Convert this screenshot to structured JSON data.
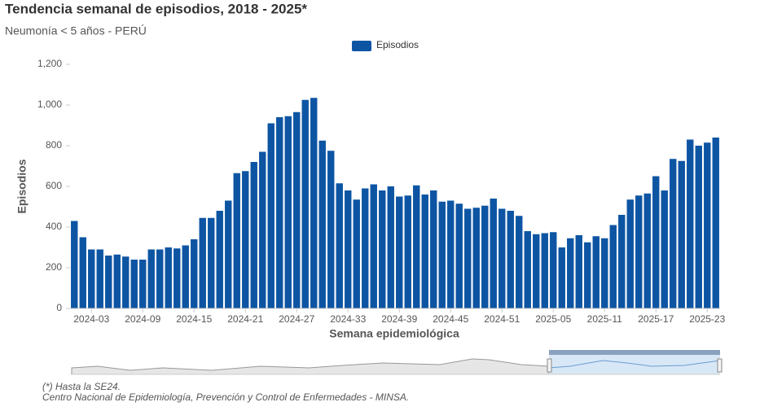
{
  "chart_data": {
    "type": "bar",
    "title": "Tendencia semanal de episodios, 2018 - 2025*",
    "subtitle": "Neumonía < 5 años - PERÚ",
    "y_axis_label": "Episodios",
    "x_axis_label": "Semana epidemiológica",
    "footnotes": [
      "(*) Hasta la SE24.",
      "Centro Nacional de Epidemiología, Prevención y Control de Enfermedades - MINSA."
    ],
    "categories": [
      null,
      null,
      "2024-03",
      null,
      null,
      null,
      null,
      null,
      "2024-09",
      null,
      null,
      null,
      null,
      null,
      "2024-15",
      null,
      null,
      null,
      null,
      null,
      "2024-21",
      null,
      null,
      null,
      null,
      null,
      "2024-27",
      null,
      null,
      null,
      null,
      null,
      "2024-33",
      null,
      null,
      null,
      null,
      null,
      "2024-39",
      null,
      null,
      null,
      null,
      null,
      "2024-45",
      null,
      null,
      null,
      null,
      null,
      "2024-51",
      null,
      null,
      null,
      null,
      null,
      "2025-05",
      null,
      null,
      null,
      null,
      null,
      "2025-11",
      null,
      null,
      null,
      null,
      null,
      "2025-17",
      null,
      null,
      null,
      null,
      null,
      "2025-23",
      null
    ],
    "series": [
      {
        "name": "Episodios",
        "color": "#0d55a3",
        "values": [
          430,
          350,
          290,
          290,
          260,
          265,
          255,
          240,
          240,
          290,
          290,
          300,
          295,
          310,
          340,
          445,
          445,
          480,
          530,
          665,
          675,
          720,
          770,
          910,
          940,
          945,
          965,
          1025,
          1035,
          825,
          775,
          615,
          580,
          535,
          590,
          610,
          580,
          600,
          550,
          555,
          605,
          560,
          580,
          525,
          530,
          515,
          490,
          495,
          505,
          540,
          490,
          480,
          455,
          380,
          365,
          370,
          375,
          300,
          345,
          360,
          325,
          355,
          345,
          410,
          460,
          535,
          555,
          565,
          650,
          580,
          735,
          725,
          830,
          800,
          815,
          840
        ]
      }
    ],
    "ylim": [
      0,
      1200
    ],
    "yticks": [
      0,
      200,
      400,
      600,
      800,
      {
        "value": 1000,
        "label": "1,000"
      },
      {
        "value": 1200,
        "label": "1,200"
      }
    ],
    "grid": false
  }
}
